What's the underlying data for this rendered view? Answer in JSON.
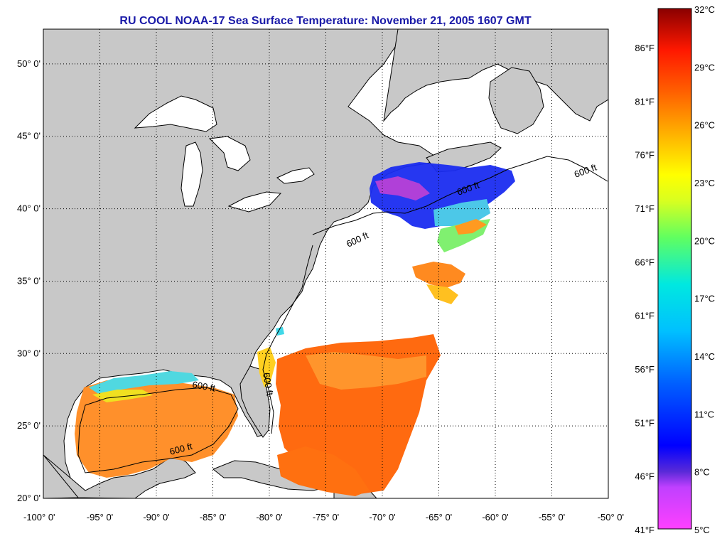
{
  "title": "RU COOL  NOAA-17  Sea Surface Temperature:  November 21, 2005 1607 GMT",
  "map": {
    "lon_range": [
      -100,
      -50
    ],
    "lat_range": [
      20,
      52.4
    ],
    "lat_ticks": [
      {
        "value": 50,
        "label": "50° 0'"
      },
      {
        "value": 45,
        "label": "45° 0'"
      },
      {
        "value": 40,
        "label": "40° 0'"
      },
      {
        "value": 35,
        "label": "35° 0'"
      },
      {
        "value": 30,
        "label": "30° 0'"
      },
      {
        "value": 25,
        "label": "25° 0'"
      },
      {
        "value": 20,
        "label": "20° 0'"
      }
    ],
    "lon_ticks": [
      {
        "value": -100,
        "label": "-100° 0'"
      },
      {
        "value": -95,
        "label": "-95° 0'"
      },
      {
        "value": -90,
        "label": "-90° 0'"
      },
      {
        "value": -85,
        "label": "-85° 0'"
      },
      {
        "value": -80,
        "label": "-80° 0'"
      },
      {
        "value": -75,
        "label": "-75° 0'"
      },
      {
        "value": -70,
        "label": "-70° 0'"
      },
      {
        "value": -65,
        "label": "-65° 0'"
      },
      {
        "value": -60,
        "label": "-60° 0'"
      },
      {
        "value": -55,
        "label": "-55° 0'"
      },
      {
        "value": -50,
        "label": "-50° 0'"
      }
    ],
    "isobath_label": "600 ft",
    "land_color": "#c8c8c8",
    "ocean_color": "#ffffff"
  },
  "colorbar": {
    "celsius_labels": [
      "32°C",
      "29°C",
      "26°C",
      "23°C",
      "20°C",
      "17°C",
      "14°C",
      "11°C",
      "8°C",
      "5°C"
    ],
    "fahrenheit_labels": [
      "86°F",
      "81°F",
      "76°F",
      "71°F",
      "66°F",
      "61°F",
      "56°F",
      "51°F",
      "46°F",
      "41°F"
    ],
    "celsius_range": [
      5,
      32
    ]
  }
}
